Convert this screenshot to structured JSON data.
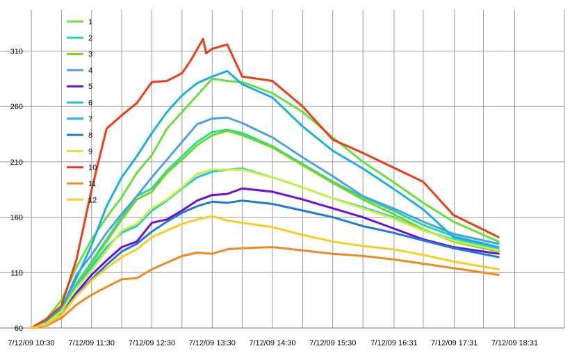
{
  "chart_data": {
    "type": "line",
    "title": "",
    "xlabel": "",
    "ylabel": "",
    "ylim": [
      60,
      340
    ],
    "y_ticks": [
      60,
      110,
      160,
      210,
      260,
      310
    ],
    "x_tick_labels": [
      "7/12/09 10:30",
      "7/12/09 11:30",
      "7/12/09 12:30",
      "7/12/09 13:30",
      "7/12/09 14:30",
      "7/12/09 15:30",
      "7/12/09 16:31",
      "7/12/09 17:31",
      "7/12/09 18:31"
    ],
    "x_tick_hours": [
      10.5,
      11.5,
      12.5,
      13.5,
      14.5,
      15.5,
      16.5167,
      17.5167,
      18.5167
    ],
    "x_range_hours": [
      10.25,
      18.6
    ],
    "vertical_grid_hours": [
      10.5,
      11.0,
      11.5,
      12.0,
      12.5,
      13.0,
      13.5,
      14.0,
      14.5,
      15.0,
      15.5,
      16.0,
      16.5167,
      17.0,
      17.5167,
      18.0,
      18.5167
    ],
    "grid": true,
    "legend_position": "top-left",
    "series": [
      {
        "name": "1",
        "color": "#66e03c",
        "x": [
          10.5,
          10.75,
          11.0,
          11.25,
          11.5,
          11.75,
          12.0,
          12.25,
          12.5,
          12.75,
          13.0,
          13.25,
          13.5,
          13.75,
          14.0,
          14.5,
          15.0,
          15.5,
          16.0,
          16.5,
          17.0,
          17.5,
          18.25
        ],
        "y": [
          60,
          68,
          85,
          115,
          140,
          160,
          178,
          200,
          216,
          240,
          255,
          270,
          285,
          283,
          282,
          272,
          255,
          232,
          210,
          192,
          173,
          156,
          138
        ]
      },
      {
        "name": "2",
        "color": "#22dd99",
        "x": [
          10.5,
          10.75,
          11.0,
          11.25,
          11.5,
          11.75,
          12.0,
          12.25,
          12.5,
          12.75,
          13.0,
          13.25,
          13.5,
          13.75,
          14.0,
          14.5,
          15.0,
          15.5,
          16.0,
          16.5,
          17.0,
          17.5,
          18.25
        ],
        "y": [
          60,
          65,
          75,
          100,
          120,
          140,
          160,
          179,
          186,
          202,
          215,
          228,
          237,
          239,
          236,
          224,
          208,
          192,
          178,
          166,
          153,
          143,
          133
        ]
      },
      {
        "name": "3",
        "color": "#77d420",
        "x": [
          10.5,
          10.75,
          11.0,
          11.25,
          11.5,
          11.75,
          12.0,
          12.25,
          12.5,
          12.75,
          13.0,
          13.25,
          13.5,
          13.75,
          14.0,
          14.5,
          15.0,
          15.5,
          16.0,
          16.5,
          17.0,
          17.5,
          18.25
        ],
        "y": [
          60,
          64,
          75,
          100,
          118,
          138,
          158,
          176,
          183,
          200,
          212,
          225,
          234,
          238,
          234,
          223,
          207,
          191,
          176,
          163,
          149,
          138,
          129
        ]
      },
      {
        "name": "4",
        "color": "#4da0e8",
        "x": [
          10.5,
          10.75,
          11.0,
          11.25,
          11.5,
          11.75,
          12.0,
          12.25,
          12.5,
          12.75,
          13.0,
          13.25,
          13.5,
          13.75,
          14.0,
          14.5,
          15.0,
          15.5,
          16.0,
          16.5,
          17.0,
          17.5,
          18.25
        ],
        "y": [
          60,
          64,
          77,
          108,
          126,
          146,
          163,
          179,
          196,
          212,
          228,
          244,
          249,
          250,
          245,
          232,
          214,
          197,
          179,
          168,
          156,
          145,
          136
        ]
      },
      {
        "name": "5",
        "color": "#6a10dd",
        "x": [
          10.5,
          10.75,
          11.0,
          11.25,
          11.5,
          11.75,
          12.0,
          12.25,
          12.5,
          12.75,
          13.0,
          13.25,
          13.5,
          13.75,
          14.0,
          14.5,
          15.0,
          15.5,
          16.0,
          16.5,
          17.0,
          17.5,
          18.25
        ],
        "y": [
          60,
          64,
          73,
          92,
          108,
          121,
          133,
          138,
          155,
          158,
          166,
          175,
          180,
          181,
          186,
          183,
          176,
          168,
          160,
          150,
          140,
          133,
          127
        ]
      },
      {
        "name": "6",
        "color": "#22c8e0",
        "x": [
          10.5,
          10.75,
          11.0,
          11.25,
          11.5,
          11.75,
          12.0,
          12.25,
          12.5,
          12.75,
          13.0,
          13.25,
          13.5,
          13.75,
          14.0,
          14.5,
          15.0,
          15.5,
          16.0,
          16.5,
          17.0,
          17.5,
          18.25
        ],
        "y": [
          60,
          64,
          75,
          98,
          115,
          133,
          146,
          152,
          166,
          175,
          186,
          196,
          201,
          203,
          204,
          196,
          187,
          177,
          169,
          160,
          148,
          140,
          131
        ]
      },
      {
        "name": "7",
        "color": "#1aaee6",
        "x": [
          10.5,
          10.75,
          11.0,
          11.25,
          11.5,
          11.75,
          12.0,
          12.25,
          12.5,
          12.75,
          13.0,
          13.25,
          13.5,
          13.75,
          14.0,
          14.5,
          15.0,
          15.5,
          16.0,
          16.5,
          17.0,
          17.5,
          18.25
        ],
        "y": [
          60,
          66,
          78,
          105,
          135,
          170,
          196,
          215,
          236,
          255,
          270,
          281,
          287,
          292,
          280,
          268,
          242,
          220,
          204,
          186,
          167,
          142,
          133
        ]
      },
      {
        "name": "8",
        "color": "#1e7bd6",
        "x": [
          10.5,
          10.75,
          11.0,
          11.25,
          11.5,
          11.75,
          12.0,
          12.25,
          12.5,
          12.75,
          13.0,
          13.25,
          13.5,
          13.75,
          14.0,
          14.5,
          15.0,
          15.5,
          16.0,
          16.5,
          17.0,
          17.5,
          18.25
        ],
        "y": [
          60,
          63,
          72,
          90,
          104,
          117,
          129,
          136,
          147,
          156,
          164,
          170,
          174,
          173,
          175,
          172,
          166,
          160,
          152,
          146,
          139,
          132,
          124
        ]
      },
      {
        "name": "9",
        "color": "#c8f03c",
        "x": [
          10.5,
          10.75,
          11.0,
          11.25,
          11.5,
          11.75,
          12.0,
          12.25,
          12.5,
          12.75,
          13.0,
          13.25,
          13.5,
          13.75,
          14.0,
          14.5,
          15.0,
          15.5,
          16.0,
          16.5,
          17.0,
          17.5,
          18.25
        ],
        "y": [
          60,
          64,
          75,
          96,
          112,
          130,
          148,
          154,
          168,
          176,
          187,
          199,
          203,
          203,
          203,
          196,
          187,
          177,
          168,
          159,
          148,
          139,
          130
        ]
      },
      {
        "name": "10",
        "color": "#ee3c16",
        "x": [
          10.5,
          10.75,
          11.0,
          11.25,
          11.5,
          11.75,
          12.0,
          12.25,
          12.5,
          12.75,
          13.0,
          13.15,
          13.35,
          13.4,
          13.5,
          13.75,
          14.0,
          14.5,
          15.0,
          15.5,
          16.0,
          16.5,
          17.0,
          17.5,
          18.25
        ],
        "y": [
          60,
          68,
          80,
          122,
          185,
          240,
          252,
          263,
          282,
          283,
          290,
          302,
          321,
          308,
          312,
          316,
          287,
          283,
          260,
          230,
          218,
          205,
          192,
          162,
          142
        ]
      },
      {
        "name": "11",
        "color": "#ee8a20",
        "x": [
          10.5,
          10.75,
          11.0,
          11.25,
          11.5,
          11.75,
          12.0,
          12.25,
          12.5,
          12.75,
          13.0,
          13.25,
          13.5,
          13.75,
          14.0,
          14.5,
          15.0,
          15.5,
          16.0,
          16.5,
          17.0,
          17.5,
          18.25
        ],
        "y": [
          60,
          62,
          69,
          81,
          90,
          97,
          104,
          105,
          113,
          119,
          125,
          128,
          127,
          131,
          132,
          133,
          130,
          127,
          125,
          122,
          118,
          114,
          108
        ]
      },
      {
        "name": "12",
        "color": "#f8cc20",
        "x": [
          10.5,
          10.75,
          11.0,
          11.25,
          11.5,
          11.75,
          12.0,
          12.25,
          12.5,
          12.75,
          13.0,
          13.25,
          13.5,
          13.75,
          14.0,
          14.5,
          15.0,
          15.5,
          16.0,
          16.5,
          17.0,
          17.5,
          18.25
        ],
        "y": [
          60,
          63,
          72,
          89,
          103,
          114,
          124,
          131,
          142,
          148,
          154,
          158,
          161,
          157,
          155,
          151,
          144,
          138,
          134,
          131,
          126,
          120,
          113
        ]
      }
    ]
  },
  "style": {
    "grid_color": "#9a9a9a",
    "axis_color": "#7a7a7a",
    "background": "#ffffff"
  }
}
